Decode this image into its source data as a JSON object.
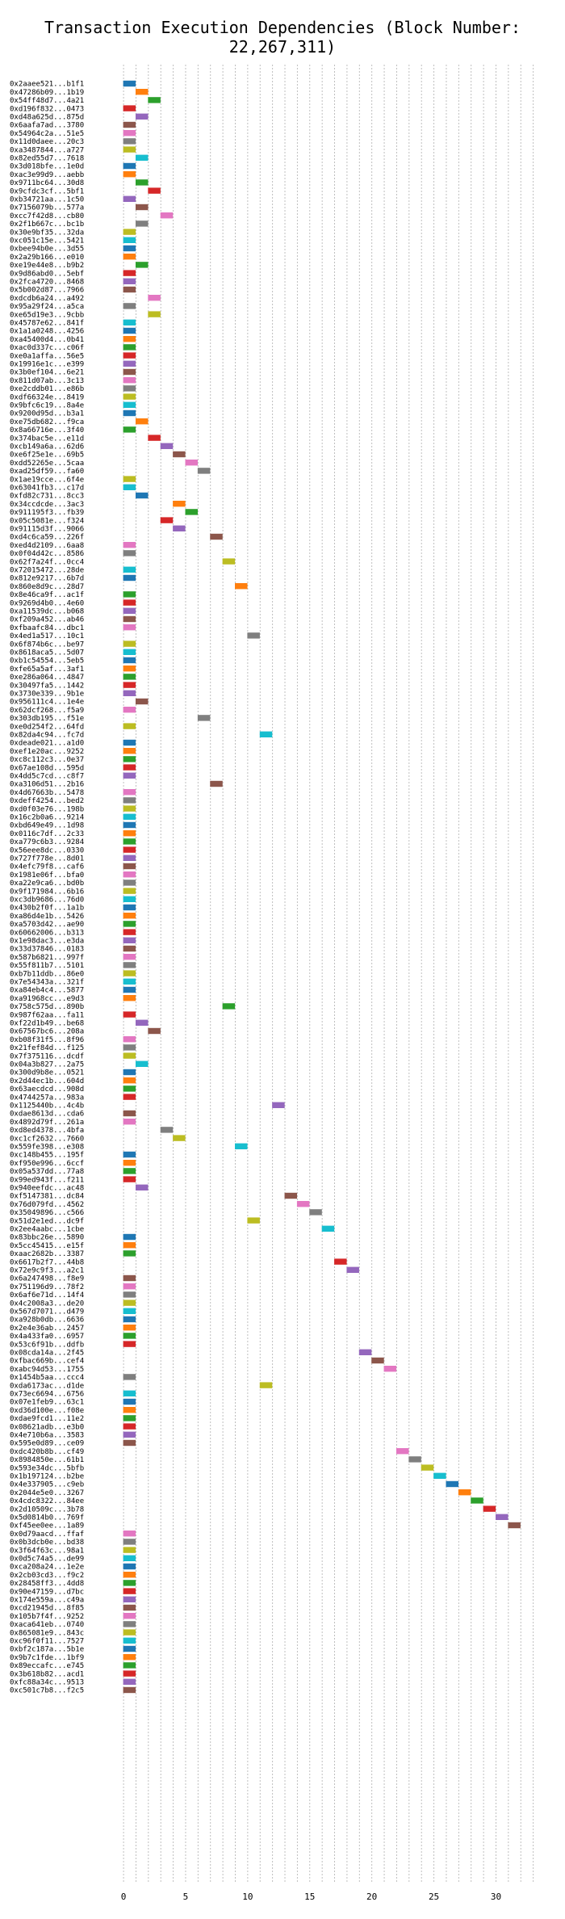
{
  "chart_data": {
    "type": "gantt",
    "title": "Transaction Execution Dependencies (Block Number: 22,267,311)",
    "xlabel": "",
    "ylabel": "",
    "xlim": [
      -1.5,
      34
    ],
    "xticks": [
      0,
      5,
      10,
      15,
      20,
      25,
      30
    ],
    "grid": "vertical dotted",
    "legend": "none",
    "palette": [
      "#1f77b4",
      "#ff7f0e",
      "#2ca02c",
      "#d62728",
      "#9467bd",
      "#8c564b",
      "#e377c2",
      "#7f7f7f",
      "#bcbd22",
      "#17becf"
    ],
    "rows": [
      {
        "label": "0x2aaee521...b1f1",
        "start": 0
      },
      {
        "label": "0x47286b09...1b19",
        "start": 1
      },
      {
        "label": "0x54ff48d7...4a21",
        "start": 2
      },
      {
        "label": "0xd196f832...0473",
        "start": 0
      },
      {
        "label": "0xd48a625d...875d",
        "start": 1
      },
      {
        "label": "0x6aafa7ad...3780",
        "start": 0
      },
      {
        "label": "0x54964c2a...51e5",
        "start": 0
      },
      {
        "label": "0x11d0daee...20c3",
        "start": 0
      },
      {
        "label": "0xa3487844...a727",
        "start": 0
      },
      {
        "label": "0x82ed55d7...7618",
        "start": 1
      },
      {
        "label": "0x3d018bfe...1e0d",
        "start": 0
      },
      {
        "label": "0xac3e99d9...aebb",
        "start": 0
      },
      {
        "label": "0x9711bc64...30d8",
        "start": 1
      },
      {
        "label": "0x9cfdc3cf...5bf1",
        "start": 2
      },
      {
        "label": "0xb34721aa...1c50",
        "start": 0
      },
      {
        "label": "0x7156079b...577a",
        "start": 1
      },
      {
        "label": "0xcc7f42d8...cb80",
        "start": 3
      },
      {
        "label": "0x2f1b667c...bc1b",
        "start": 1
      },
      {
        "label": "0x30e9bf35...32da",
        "start": 0
      },
      {
        "label": "0xc051c15e...5421",
        "start": 0
      },
      {
        "label": "0xbee94b0e...3d55",
        "start": 0
      },
      {
        "label": "0x2a29b166...e010",
        "start": 0
      },
      {
        "label": "0xe19e44e8...b9b2",
        "start": 1
      },
      {
        "label": "0x9d86abd0...5ebf",
        "start": 0
      },
      {
        "label": "0x2fca4720...8468",
        "start": 0
      },
      {
        "label": "0x5b002d87...7966",
        "start": 0
      },
      {
        "label": "0xdcdb6a24...a492",
        "start": 2
      },
      {
        "label": "0x95a29f24...a5ca",
        "start": 0
      },
      {
        "label": "0xe65d19e3...9cbb",
        "start": 2
      },
      {
        "label": "0x45787e62...841f",
        "start": 0
      },
      {
        "label": "0x1a1a0248...4256",
        "start": 0
      },
      {
        "label": "0xa45400d4...0b41",
        "start": 0
      },
      {
        "label": "0xac0d337c...c06f",
        "start": 0
      },
      {
        "label": "0xe0a1affa...56e5",
        "start": 0
      },
      {
        "label": "0x19916e1c...e399",
        "start": 0
      },
      {
        "label": "0x3b0ef104...6e21",
        "start": 0
      },
      {
        "label": "0x811d07ab...3c13",
        "start": 0
      },
      {
        "label": "0xe2cddb01...e86b",
        "start": 0
      },
      {
        "label": "0xdf66324e...8419",
        "start": 0
      },
      {
        "label": "0x9bfc6c19...8a4e",
        "start": 0
      },
      {
        "label": "0x9200d95d...b3a1",
        "start": 0
      },
      {
        "label": "0xe75db682...f9ca",
        "start": 1
      },
      {
        "label": "0x8a66716e...3f40",
        "start": 0
      },
      {
        "label": "0x374bac5e...e11d",
        "start": 2
      },
      {
        "label": "0xcb149a6a...62d6",
        "start": 3
      },
      {
        "label": "0xe6f25e1e...69b5",
        "start": 4
      },
      {
        "label": "0xdd52265e...5caa",
        "start": 5
      },
      {
        "label": "0xad25df59...fa60",
        "start": 6
      },
      {
        "label": "0x1ae19cce...6f4e",
        "start": 0
      },
      {
        "label": "0x63041fb3...c17d",
        "start": 0
      },
      {
        "label": "0xfd82c731...8cc3",
        "start": 1
      },
      {
        "label": "0x34ccdcde...3ac3",
        "start": 4
      },
      {
        "label": "0x911195f3...fb39",
        "start": 5
      },
      {
        "label": "0x05c5081e...f324",
        "start": 3
      },
      {
        "label": "0x91115d3f...9066",
        "start": 4
      },
      {
        "label": "0xd4c6ca59...226f",
        "start": 7
      },
      {
        "label": "0xed4d2109...6aa8",
        "start": 0
      },
      {
        "label": "0x0f04d42c...8586",
        "start": 0
      },
      {
        "label": "0x62f7a24f...0cc4",
        "start": 8
      },
      {
        "label": "0x72015472...28de",
        "start": 0
      },
      {
        "label": "0x812e9217...6b7d",
        "start": 0
      },
      {
        "label": "0x860e8d9c...28d7",
        "start": 9
      },
      {
        "label": "0x8e46ca9f...ac1f",
        "start": 0
      },
      {
        "label": "0x9269d4b0...4e60",
        "start": 0
      },
      {
        "label": "0xa11539dc...b068",
        "start": 0
      },
      {
        "label": "0xf209a452...ab46",
        "start": 0
      },
      {
        "label": "0xfbaafc84...dbc1",
        "start": 0
      },
      {
        "label": "0x4ed1a517...10c1",
        "start": 10
      },
      {
        "label": "0x6f874b6c...be97",
        "start": 0
      },
      {
        "label": "0x8618aca5...5d07",
        "start": 0
      },
      {
        "label": "0xb1c54554...5eb5",
        "start": 0
      },
      {
        "label": "0xfe65a5af...3af1",
        "start": 0
      },
      {
        "label": "0xe286a064...4847",
        "start": 0
      },
      {
        "label": "0x30497fa5...1442",
        "start": 0
      },
      {
        "label": "0x3730e339...9b1e",
        "start": 0
      },
      {
        "label": "0x956111c4...1e4e",
        "start": 1
      },
      {
        "label": "0x62dcf268...f5a9",
        "start": 0
      },
      {
        "label": "0x303db195...f51e",
        "start": 6
      },
      {
        "label": "0xe0d254f2...64fd",
        "start": 0
      },
      {
        "label": "0x82da4c94...fc7d",
        "start": 11
      },
      {
        "label": "0xdeade021...a1d0",
        "start": 0
      },
      {
        "label": "0xef1e20ac...9252",
        "start": 0
      },
      {
        "label": "0xc8c112c3...0e37",
        "start": 0
      },
      {
        "label": "0x67ae108d...595d",
        "start": 0
      },
      {
        "label": "0x4dd5c7cd...c8f7",
        "start": 0
      },
      {
        "label": "0xa3106d51...2b16",
        "start": 7
      },
      {
        "label": "0x4d67663b...5478",
        "start": 0
      },
      {
        "label": "0xdeff4254...bed2",
        "start": 0
      },
      {
        "label": "0xd0f03e76...198b",
        "start": 0
      },
      {
        "label": "0x16c2b0a6...9214",
        "start": 0
      },
      {
        "label": "0xbd649e49...1d98",
        "start": 0
      },
      {
        "label": "0x0116c7df...2c33",
        "start": 0
      },
      {
        "label": "0xa779c6b3...9284",
        "start": 0
      },
      {
        "label": "0x56eee8dc...0330",
        "start": 0
      },
      {
        "label": "0x727f778e...8d01",
        "start": 0
      },
      {
        "label": "0x4efc79f8...caf6",
        "start": 0
      },
      {
        "label": "0x1981e06f...bfa0",
        "start": 0
      },
      {
        "label": "0xa22e9ca6...bd0b",
        "start": 0
      },
      {
        "label": "0x9f171984...6b16",
        "start": 0
      },
      {
        "label": "0xc3db9686...76d0",
        "start": 0
      },
      {
        "label": "0x430b2f0f...1a1b",
        "start": 0
      },
      {
        "label": "0xa86d4e1b...5426",
        "start": 0
      },
      {
        "label": "0xa5703d42...ae90",
        "start": 0
      },
      {
        "label": "0x60662006...b313",
        "start": 0
      },
      {
        "label": "0x1e98dac3...e3da",
        "start": 0
      },
      {
        "label": "0x33d37846...0183",
        "start": 0
      },
      {
        "label": "0x587b6821...997f",
        "start": 0
      },
      {
        "label": "0x55f811b7...5101",
        "start": 0
      },
      {
        "label": "0xb7b11ddb...86e0",
        "start": 0
      },
      {
        "label": "0x7e54343a...321f",
        "start": 0
      },
      {
        "label": "0xa84eb4c4...5877",
        "start": 0
      },
      {
        "label": "0xa91968cc...e9d3",
        "start": 0
      },
      {
        "label": "0x758c575d...890b",
        "start": 8
      },
      {
        "label": "0x987f62aa...fa11",
        "start": 0
      },
      {
        "label": "0xf22d1b49...be68",
        "start": 1
      },
      {
        "label": "0x67567bc6...208a",
        "start": 2
      },
      {
        "label": "0xb08f31f5...8f96",
        "start": 0
      },
      {
        "label": "0x21fef84d...f125",
        "start": 0
      },
      {
        "label": "0x7f375116...dcdf",
        "start": 0
      },
      {
        "label": "0x04a3b827...2a75",
        "start": 1
      },
      {
        "label": "0x300d9b8e...0521",
        "start": 0
      },
      {
        "label": "0x2d44ec1b...604d",
        "start": 0
      },
      {
        "label": "0x63aecdcd...908d",
        "start": 0
      },
      {
        "label": "0x4744257a...983a",
        "start": 0
      },
      {
        "label": "0x1125440b...4c4b",
        "start": 12
      },
      {
        "label": "0xdae8613d...cda6",
        "start": 0
      },
      {
        "label": "0x4892d79f...261a",
        "start": 0
      },
      {
        "label": "0xd8ed4378...4bfa",
        "start": 3
      },
      {
        "label": "0xc1cf2632...7660",
        "start": 4
      },
      {
        "label": "0x559fe398...e308",
        "start": 9
      },
      {
        "label": "0xc148b455...195f",
        "start": 0
      },
      {
        "label": "0xf950e996...6ccf",
        "start": 0
      },
      {
        "label": "0x05a537dd...77a8",
        "start": 0
      },
      {
        "label": "0x99ed943f...f211",
        "start": 0
      },
      {
        "label": "0x940eefdc...ac48",
        "start": 1
      },
      {
        "label": "0xf5147381...dc84",
        "start": 13
      },
      {
        "label": "0x76d079fd...4562",
        "start": 14
      },
      {
        "label": "0x35049896...c566",
        "start": 15
      },
      {
        "label": "0x51d2e1ed...dc9f",
        "start": 10
      },
      {
        "label": "0x2ee4aabc...1cbe",
        "start": 16
      },
      {
        "label": "0x83bbc26e...5890",
        "start": 0
      },
      {
        "label": "0x5cc45415...e15f",
        "start": 0
      },
      {
        "label": "0xaac2682b...3387",
        "start": 0
      },
      {
        "label": "0x6617b2f7...44b8",
        "start": 17
      },
      {
        "label": "0x72e9c9f3...a2c1",
        "start": 18
      },
      {
        "label": "0x6a247498...f8e9",
        "start": 0
      },
      {
        "label": "0x751196d9...78f2",
        "start": 0
      },
      {
        "label": "0x6af6e71d...14f4",
        "start": 0
      },
      {
        "label": "0x4c2008a3...de20",
        "start": 0
      },
      {
        "label": "0x567d7071...d479",
        "start": 0
      },
      {
        "label": "0xa928b0db...6636",
        "start": 0
      },
      {
        "label": "0x2e4e36ab...2457",
        "start": 0
      },
      {
        "label": "0x4a433fa0...6957",
        "start": 0
      },
      {
        "label": "0x53c6f91b...ddfb",
        "start": 0
      },
      {
        "label": "0x08cda14a...2f45",
        "start": 19
      },
      {
        "label": "0xfbac669b...cef4",
        "start": 20
      },
      {
        "label": "0xabc94d53...1755",
        "start": 21
      },
      {
        "label": "0x1454b5aa...ccc4",
        "start": 0
      },
      {
        "label": "0xda6173ac...d1de",
        "start": 11
      },
      {
        "label": "0x73ec6694...6756",
        "start": 0
      },
      {
        "label": "0x07e1feb9...63c1",
        "start": 0
      },
      {
        "label": "0xd36d100e...f08e",
        "start": 0
      },
      {
        "label": "0xdae9fcd1...11e2",
        "start": 0
      },
      {
        "label": "0x08621adb...e3b0",
        "start": 0
      },
      {
        "label": "0x4e710b6a...3583",
        "start": 0
      },
      {
        "label": "0x595e0d89...ce09",
        "start": 0
      },
      {
        "label": "0xdc420b8b...cf49",
        "start": 22
      },
      {
        "label": "0x8984850e...61b1",
        "start": 23
      },
      {
        "label": "0x593e34dc...5bfb",
        "start": 24
      },
      {
        "label": "0x1b197124...b2be",
        "start": 25
      },
      {
        "label": "0x4e337905...c9eb",
        "start": 26
      },
      {
        "label": "0x2044e5e0...3267",
        "start": 27
      },
      {
        "label": "0x4cdc8322...84ee",
        "start": 28
      },
      {
        "label": "0x2d10509c...3b78",
        "start": 29
      },
      {
        "label": "0x5d0814b0...769f",
        "start": 30
      },
      {
        "label": "0xf45ee0ee...1a89",
        "start": 31
      },
      {
        "label": "0x0d79aacd...ffaf",
        "start": 0
      },
      {
        "label": "0x0b3dcb0e...bd38",
        "start": 0
      },
      {
        "label": "0x3f64f63c...98a1",
        "start": 0
      },
      {
        "label": "0x0d5c74a5...de99",
        "start": 0
      },
      {
        "label": "0xca208a24...1e2e",
        "start": 0
      },
      {
        "label": "0x2cb03cd3...f9c2",
        "start": 0
      },
      {
        "label": "0x28458ff3...4dd8",
        "start": 0
      },
      {
        "label": "0x90e47159...d7bc",
        "start": 0
      },
      {
        "label": "0x174e559a...c49a",
        "start": 0
      },
      {
        "label": "0xcd21945d...8f85",
        "start": 0
      },
      {
        "label": "0x105b7f4f...9252",
        "start": 0
      },
      {
        "label": "0xaca641eb...0740",
        "start": 0
      },
      {
        "label": "0x865081e9...843c",
        "start": 0
      },
      {
        "label": "0xc96f0f11...7527",
        "start": 0
      },
      {
        "label": "0xbf2c187a...5b1e",
        "start": 0
      },
      {
        "label": "0x9b7c1fde...1bf9",
        "start": 0
      },
      {
        "label": "0x89eccafc...e745",
        "start": 0
      },
      {
        "label": "0x3b618b82...acd1",
        "start": 0
      },
      {
        "label": "0xfc88a34c...9513",
        "start": 0
      },
      {
        "label": "0xc501c7b8...f2c5",
        "start": 0
      }
    ]
  }
}
